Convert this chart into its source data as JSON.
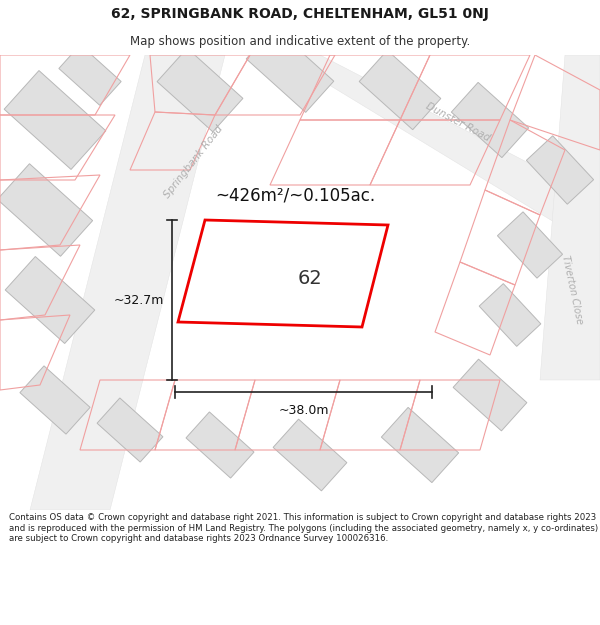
{
  "title_line1": "62, SPRINGBANK ROAD, CHELTENHAM, GL51 0NJ",
  "title_line2": "Map shows position and indicative extent of the property.",
  "footer_text": "Contains OS data © Crown copyright and database right 2021. This information is subject to Crown copyright and database rights 2023 and is reproduced with the permission of HM Land Registry. The polygons (including the associated geometry, namely x, y co-ordinates) are subject to Crown copyright and database rights 2023 Ordnance Survey 100026316.",
  "map_bg_color": "#f8f8f8",
  "page_bg_color": "#ffffff",
  "building_fill": "#e0e0e0",
  "building_edge": "#b0b0b0",
  "road_label_color": "#bbbbbb",
  "highlight_fill": "#ffffff",
  "highlight_edge": "#ee0000",
  "nearby_edge": "#f5aaaa",
  "area_text": "~426m²/~0.105ac.",
  "label_text": "62",
  "dim_width": "~38.0m",
  "dim_height": "~32.7m",
  "title_fontsize": 10,
  "subtitle_fontsize": 8.5,
  "footer_fontsize": 6.2
}
